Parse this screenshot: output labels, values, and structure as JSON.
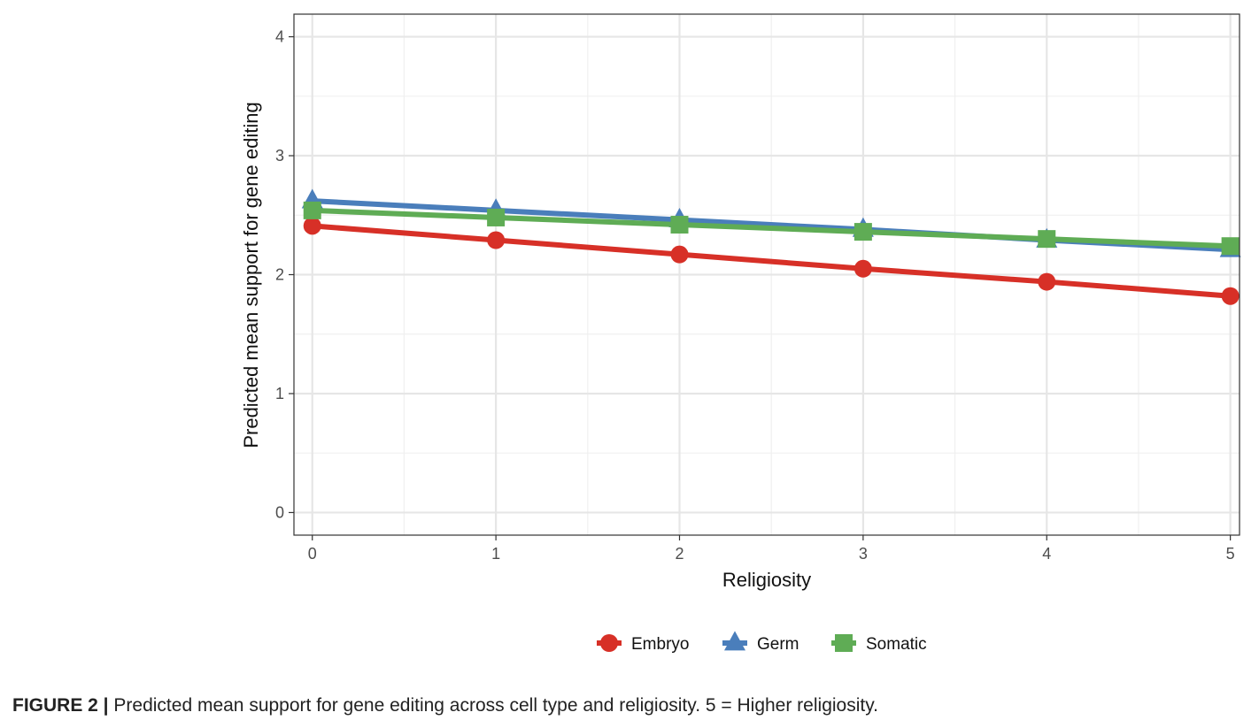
{
  "caption": {
    "label": "FIGURE 2 |",
    "text": "Predicted mean support for gene editing across cell type and religiosity. 5 = Higher religiosity."
  },
  "chart_data": {
    "type": "line",
    "title": "",
    "xlabel": "Religiosity",
    "ylabel": "Predicted mean support for gene editing",
    "x": [
      0,
      1,
      2,
      3,
      4,
      5
    ],
    "xlim": [
      -0.1,
      5.05
    ],
    "ylim": [
      -0.19,
      4.19
    ],
    "x_ticks": [
      0,
      1,
      2,
      3,
      4,
      5
    ],
    "y_ticks": [
      0,
      1,
      2,
      3,
      4
    ],
    "grid": true,
    "legend_position": "bottom",
    "series": [
      {
        "name": "Embryo",
        "color": "#d73027",
        "marker": "circle",
        "values": [
          2.41,
          2.29,
          2.17,
          2.05,
          1.94,
          1.82
        ]
      },
      {
        "name": "Germ",
        "color": "#4a7ebb",
        "marker": "triangle",
        "values": [
          2.62,
          2.54,
          2.46,
          2.38,
          2.29,
          2.21
        ]
      },
      {
        "name": "Somatic",
        "color": "#5fac55",
        "marker": "square",
        "values": [
          2.54,
          2.48,
          2.42,
          2.36,
          2.3,
          2.24
        ]
      }
    ]
  }
}
